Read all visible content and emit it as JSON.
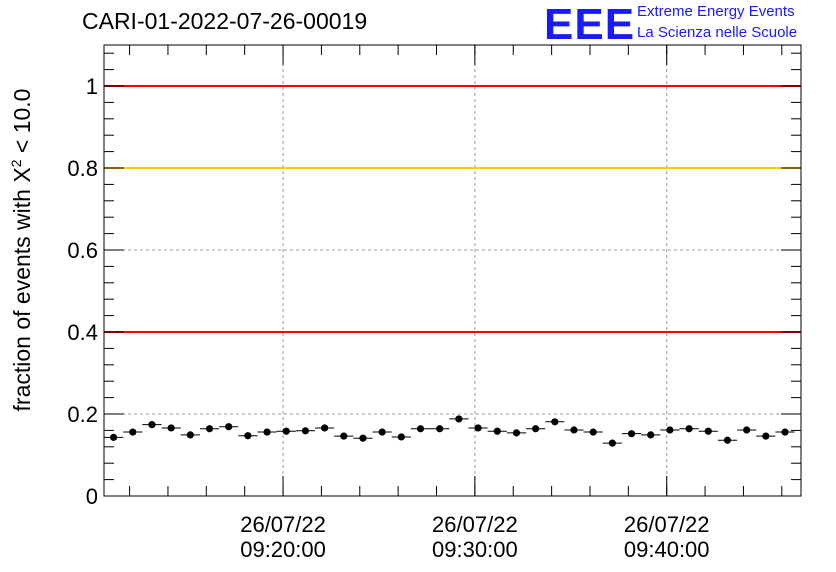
{
  "title": "CARI-01-2022-07-26-00019",
  "logo": {
    "mark": "EEE",
    "line1": "Extreme Energy Events",
    "line2": "La Scienza nelle Scuole",
    "color": "#1a1aff"
  },
  "axis": {
    "ylabel_prefix": "fraction of events with ",
    "ylabel_symbol": "X",
    "ylabel_sup": "2",
    "ylabel_suffix": " < 10.0"
  },
  "chart_data": {
    "type": "scatter",
    "xlabel": "",
    "ylabel": "fraction of events with X² < 10.0",
    "ylim": [
      0,
      1.1
    ],
    "yticks": [
      0,
      0.2,
      0.4,
      0.6,
      0.8,
      1
    ],
    "ytick_labels": [
      "0",
      "0.2",
      "0.4",
      "0.6",
      "0.8",
      "1"
    ],
    "x_start": "26/07/22 09:10:40",
    "x_end": "26/07/22 09:47:00",
    "xtick_times": [
      "26/07/22 09:20:00",
      "26/07/22 09:30:00",
      "26/07/22 09:40:00"
    ],
    "xtick_labels": [
      [
        "26/07/22",
        "09:20:00"
      ],
      [
        "26/07/22",
        "09:30:00"
      ],
      [
        "26/07/22",
        "09:40:00"
      ]
    ],
    "bin_width_seconds": 60,
    "x": [
      "09:11:10",
      "09:12:10",
      "09:13:10",
      "09:14:10",
      "09:15:10",
      "09:16:10",
      "09:17:10",
      "09:18:10",
      "09:19:10",
      "09:20:10",
      "09:21:10",
      "09:22:10",
      "09:23:10",
      "09:24:10",
      "09:25:10",
      "09:26:10",
      "09:27:10",
      "09:28:10",
      "09:29:10",
      "09:30:10",
      "09:31:10",
      "09:32:10",
      "09:33:10",
      "09:34:10",
      "09:35:10",
      "09:36:10",
      "09:37:10",
      "09:38:10",
      "09:39:10",
      "09:40:10",
      "09:41:10",
      "09:42:10",
      "09:43:10",
      "09:44:10",
      "09:45:10",
      "09:46:10"
    ],
    "y": [
      0.143,
      0.156,
      0.174,
      0.166,
      0.149,
      0.164,
      0.169,
      0.147,
      0.156,
      0.158,
      0.159,
      0.166,
      0.146,
      0.141,
      0.156,
      0.144,
      0.164,
      0.164,
      0.188,
      0.166,
      0.158,
      0.154,
      0.164,
      0.181,
      0.161,
      0.156,
      0.129,
      0.152,
      0.149,
      0.161,
      0.164,
      0.158,
      0.136,
      0.161,
      0.146,
      0.156
    ],
    "hlines": [
      {
        "y": 1.0,
        "color": "#ff0000"
      },
      {
        "y": 0.8,
        "color": "#ffcc00"
      },
      {
        "y": 0.4,
        "color": "#ff0000"
      }
    ],
    "grid": true,
    "marker_color": "#000000"
  }
}
